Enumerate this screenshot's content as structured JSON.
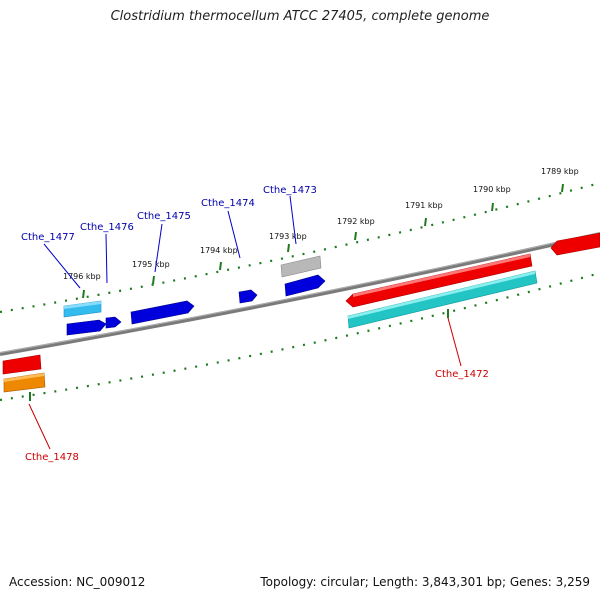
{
  "title": "Clostridium thermocellum ATCC 27405, complete genome",
  "accession": "Accession: NC_009012",
  "summary": "Topology: circular; Length: 3,843,301 bp; Genes: 3,259",
  "scale_labels": [
    "1789 kbp",
    "1790 kbp",
    "1791 kbp",
    "1792 kbp",
    "1793 kbp",
    "1794 kbp",
    "1795 kbp",
    "1796 kbp"
  ],
  "gene_labels": {
    "cthe_1472": "Cthe_1472",
    "cthe_1473": "Cthe_1473",
    "cthe_1474": "Cthe_1474",
    "cthe_1475": "Cthe_1475",
    "cthe_1476": "Cthe_1476",
    "cthe_1477": "Cthe_1477",
    "cthe_1478": "Cthe_1478"
  },
  "colors": {
    "backbone": "#7a7a7a",
    "ticks": "#1f7a1f",
    "forward_cds": "#0000dd",
    "reverse_cds": "#ee0000",
    "rna": "#22c4c4",
    "light_blue": "#33bbee",
    "orange": "#ee8800",
    "grey_gene": "#b8b8b8",
    "blue_label": "#0000aa",
    "red_label": "#cc0000"
  }
}
